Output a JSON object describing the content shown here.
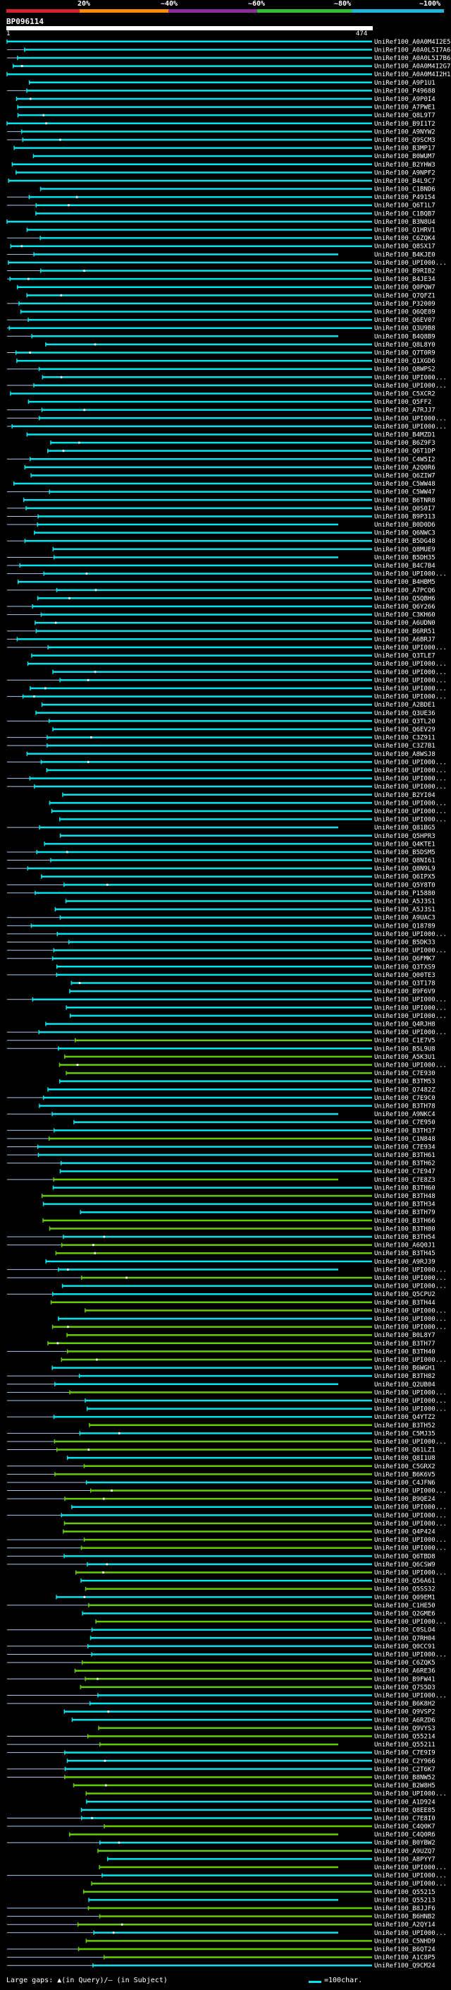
{
  "colorbar": {
    "labels": [
      "20%",
      "~40%",
      "~60%",
      "~80%",
      "~100%"
    ],
    "colors": [
      "#d4232b",
      "#ff8c00",
      "#8b2f9c",
      "#2fbf2f",
      "#1fb6d9"
    ]
  },
  "query": {
    "id": "BP096114",
    "start": "1",
    "end": "474"
  },
  "hit_colors": {
    "cyan": "#00e5ee",
    "green": "#66cc00",
    "gap": "#a8c8e8"
  },
  "hits": [
    "UniRef100_A0A0M4I2E5",
    "UniRef100_A0A0L5I7A6",
    "UniRef100_A0A0L5I7B6",
    "UniRef100_A0A0M4I2G7",
    "UniRef100_A0A0M4I2H1",
    "UniRef100_A9P1U1",
    "UniRef100_P49688",
    "UniRef100_A9P0I4",
    "UniRef100_A7PWE1",
    "UniRef100_Q8L9T7",
    "UniRef100_B9I1T2",
    "UniRef100_A9NYW2",
    "UniRef100_Q9SCM3",
    "UniRef100_B3MP17",
    "UniRef100_B0WUM7",
    "UniRef100_B2YHW3",
    "UniRef100_A9NPF2",
    "UniRef100_B4L9C7",
    "UniRef100_C1BND6",
    "UniRef100_P49154",
    "UniRef100_Q6T1L7",
    "UniRef100_C1BQB7",
    "UniRef100_B3N8U4",
    "UniRef100_Q1HRV1",
    "UniRef100_C6ZQK4",
    "UniRef100_Q8SX17",
    "UniRef100_B4KJE0",
    "UniRef100_UPI000...",
    "UniRef100_B9RIB2",
    "UniRef100_B4JE34",
    "UniRef100_Q0PQW7",
    "UniRef100_Q7QFZ1",
    "UniRef100_P32009",
    "UniRef100_Q6QE89",
    "UniRef100_Q6EV07",
    "UniRef100_Q3U9B8",
    "UniRef100_B4Q8B9",
    "UniRef100_Q8L8Y0",
    "UniRef100_Q7T0R9",
    "UniRef100_Q1XGD6",
    "UniRef100_Q8WPS2",
    "UniRef100_UPI000...",
    "UniRef100_UPI000...",
    "UniRef100_C5XCR2",
    "UniRef100_Q5FF2",
    "UniRef100_A7RJJ7",
    "UniRef100_UPI000...",
    "UniRef100_UPI000...",
    "UniRef100_B4MZD1",
    "UniRef100_B6Z9F3",
    "UniRef100_Q6T1DP",
    "UniRef100_C4W5I2",
    "UniRef100_A2Q0R6",
    "UniRef100_Q6ZIW7",
    "UniRef100_C5WW48",
    "UniRef100_C5WW47",
    "UniRef100_B6TNR8",
    "UniRef100_Q0S0I7",
    "UniRef100_B9P313",
    "UniRef100_B0D0D6",
    "UniRef100_Q6NWC3",
    "UniRef100_B5DG48",
    "UniRef100_Q8MUE9",
    "UniRef100_B5DH35",
    "UniRef100_B4C7B4",
    "UniRef100_UPI000...",
    "UniRef100_B4HBM5",
    "UniRef100_A7PCQ6",
    "UniRef100_Q5QBH6",
    "UniRef100_Q6Y266",
    "UniRef100_C3KH60",
    "UniRef100_A6UDN0",
    "UniRef100_B6RR51",
    "UniRef100_A6BRJ7",
    "UniRef100_UPI000...",
    "UniRef100_Q3TLE7",
    "UniRef100_UPI000...",
    "UniRef100_UPI000...",
    "UniRef100_UPI000...",
    "UniRef100_UPI000...",
    "UniRef100_UPI000...",
    "UniRef100_A2BDE1",
    "UniRef100_Q3UE36",
    "UniRef100_Q3TL20",
    "UniRef100_Q6EV29",
    "UniRef100_C3Z911",
    "UniRef100_C3Z7B1",
    "UniRef100_A8WSJ8",
    "UniRef100_UPI000...",
    "UniRef100_UPI000...",
    "UniRef100_UPI000...",
    "UniRef100_UPI000...",
    "UniRef100_B2YI04",
    "UniRef100_UPI000...",
    "UniRef100_UPI000...",
    "UniRef100_UPI000...",
    "UniRef100_Q81BG5",
    "UniRef100_Q5HPR3",
    "UniRef100_Q4KTE1",
    "UniRef100_B5DSM5",
    "UniRef100_Q8NI61",
    "UniRef100_Q8N9L9",
    "UniRef100_Q6IPX5",
    "UniRef100_Q5Y8T0",
    "UniRef100_P15880",
    "UniRef100_A5J3S1",
    "UniRef100_A5J3S1",
    "UniRef100_A9UAC3",
    "UniRef100_Q18789",
    "UniRef100_UPI000...",
    "UniRef100_B5DK33",
    "UniRef100_UPI000...",
    "UniRef100_Q6FMK7",
    "UniRef100_Q3TXS9",
    "UniRef100_Q00TE3",
    "UniRef100_Q3T178",
    "UniRef100_B9F6V9",
    "UniRef100_UPI000...",
    "UniRef100_UPI000...",
    "UniRef100_UPI000...",
    "UniRef100_Q4RJH8",
    "UniRef100_UPI000...",
    "UniRef100_C1E7V5",
    "UniRef100_B5L9U8",
    "UniRef100_A5K3U1",
    "UniRef100_UPI000...",
    "UniRef100_C7E930",
    "UniRef100_B3TM53",
    "UniRef100_Q7482Z",
    "UniRef100_C7E9C0",
    "UniRef100_B3TH78",
    "UniRef100_A9NKC4",
    "UniRef100_C7E950",
    "UniRef100_B3TH37",
    "UniRef100_C1N848",
    "UniRef100_C7E934",
    "UniRef100_B3TH61",
    "UniRef100_B3TH62",
    "UniRef100_C7E947",
    "UniRef100_C7E8Z3",
    "UniRef100_B3TH60",
    "UniRef100_B3TH48",
    "UniRef100_B3TH34",
    "UniRef100_B3TH79",
    "UniRef100_B3TH66",
    "UniRef100_B3TH80",
    "UniRef100_B3TH54",
    "UniRef100_A6Q0J1",
    "UniRef100_B3TH45",
    "UniRef100_A9RJ39",
    "UniRef100_UPI000...",
    "UniRef100_UPI000...",
    "UniRef100_UPI000...",
    "UniRef100_Q5CPU2",
    "UniRef100_B3TH44",
    "UniRef100_UPI000...",
    "UniRef100_UPI000...",
    "UniRef100_UPI000...",
    "UniRef100_B0L8Y7",
    "UniRef100_B3TH77",
    "UniRef100_B3TH40",
    "UniRef100_UPI000...",
    "UniRef100_B6WGH1",
    "UniRef100_B3TH82",
    "UniRef100_Q2UB04",
    "UniRef100_UPI000...",
    "UniRef100_UPI000...",
    "UniRef100_UPI000...",
    "UniRef100_Q4YTZ2",
    "UniRef100_B3TH52",
    "UniRef100_C5MJ35",
    "UniRef100_UPI000...",
    "UniRef100_Q61LZ1",
    "UniRef100_Q8I1U8",
    "UniRef100_C5GRX2",
    "UniRef100_B6K6V5",
    "UniRef100_C4JFN6",
    "UniRef100_UPI000...",
    "UniRef100_B9QE24",
    "UniRef100_UPI000...",
    "UniRef100_UPI000...",
    "UniRef100_UPI000...",
    "UniRef100_Q4P424",
    "UniRef100_UPI000...",
    "UniRef100_UPI000...",
    "UniRef100_Q6TBD8",
    "UniRef100_Q6CSW9",
    "UniRef100_UPI000...",
    "UniRef100_Q56A61",
    "UniRef100_Q5SS32",
    "UniRef100_Q09EM1",
    "UniRef100_C1HE50",
    "UniRef100_Q2GME6",
    "UniRef100_UPI000...",
    "UniRef100_C0SLO4",
    "UniRef100_Q7RH04",
    "UniRef100_Q0CC91",
    "UniRef100_UPI000...",
    "UniRef100_C6ZQK5",
    "UniRef100_A6RE36",
    "UniRef100_B9FW41",
    "UniRef100_Q7S5D3",
    "UniRef100_UPI000...",
    "UniRef100_B6K8H2",
    "UniRef100_Q9VSP2",
    "UniRef100_A6RZD6",
    "UniRef100_Q9VYS3",
    "UniRef100_Q55214",
    "UniRef100_Q55211",
    "UniRef100_C7E9I9",
    "UniRef100_C2Y966",
    "UniRef100_C2T6K7",
    "UniRef100_B8NW52",
    "UniRef100_B2W8H5",
    "UniRef100_UPI000...",
    "UniRef100_A1D924",
    "UniRef100_Q8EE85",
    "UniRef100_C7E8I0",
    "UniRef100_C4Q0K7",
    "UniRef100_C4Q0R6",
    "UniRef100_B0YBW2",
    "UniRef100_A9UZQ7",
    "UniRef100_A8PYY7",
    "UniRef100_UPI000...",
    "UniRef100_UPI000...",
    "UniRef100_UPI000...",
    "UniRef100_Q55215",
    "UniRef100_Q55213",
    "UniRef100_B8JJF6",
    "UniRef100_B6HNB2",
    "UniRef100_A2QY14",
    "UniRef100_UPI000...",
    "UniRef100_C5NHD9",
    "UniRef100_B6QT24",
    "UniRef100_A1C8P5",
    "UniRef100_Q9CM24"
  ],
  "footer": {
    "large_gaps_label": "Large gaps:",
    "large_gaps_legend": "▲(in Query)/– (in Subject)",
    "scale_label": "=100char."
  }
}
